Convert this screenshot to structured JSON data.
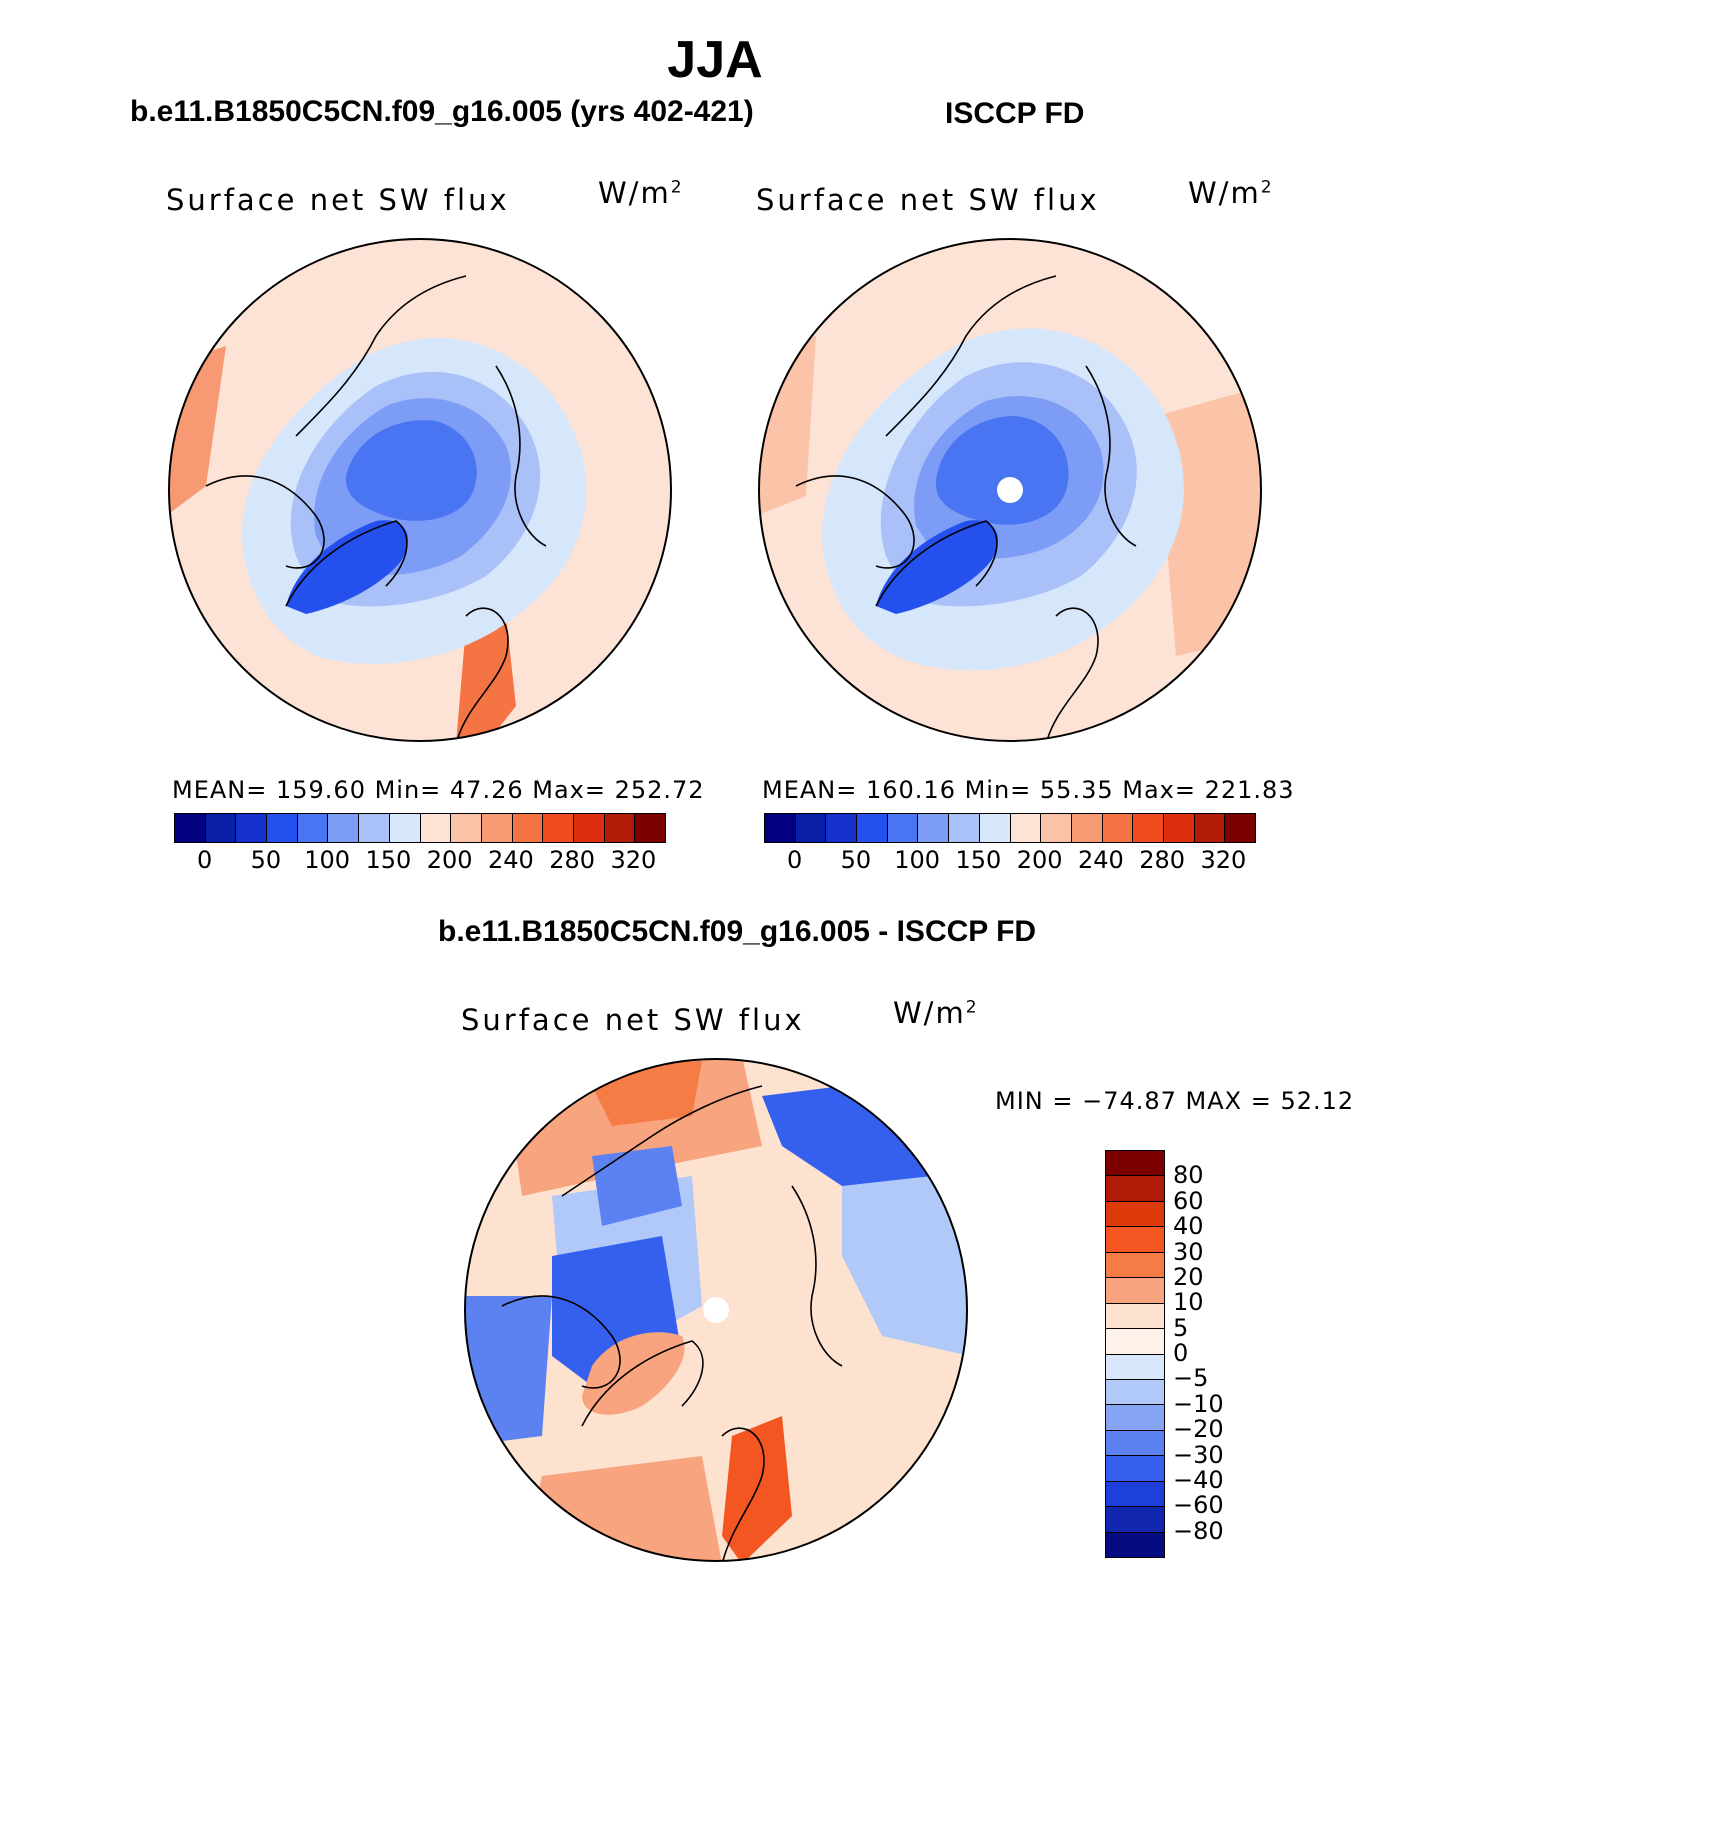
{
  "figure": {
    "title": "JJA",
    "left_header": "b.e11.B1850C5CN.f09_g16.005 (yrs 402-421)",
    "right_header": "ISCCP FD",
    "diff_header": "b.e11.B1850C5CN.f09_g16.005 - ISCCP FD"
  },
  "panels": {
    "model": {
      "title": "Surface net SW flux",
      "units": "W/m",
      "units_sup": "2",
      "stats": "MEAN=  159.60   Min=    47.26    Max=  252.72"
    },
    "obs": {
      "title": "Surface net SW flux",
      "units": "W/m",
      "units_sup": "2",
      "stats": "MEAN=  160.16   Min=    55.35    Max=  221.83"
    },
    "diff": {
      "title": "Surface net SW flux",
      "units": "W/m",
      "units_sup": "2",
      "stats": "MIN  =  −74.87  MAX  =    52.12"
    }
  },
  "chart_data": [
    {
      "type": "heatmap",
      "projection": "north-polar-stereographic",
      "title": "Surface net SW flux",
      "subtitle": "b.e11.B1850C5CN.f09_g16.005 (yrs 402-421)",
      "units": "W/m2",
      "mean": 159.6,
      "min": 47.26,
      "max": 252.72,
      "colorbar_ticks": [
        "0",
        "50",
        "100",
        "150",
        "200",
        "240",
        "280",
        "320"
      ],
      "colorbar_levels": 16
    },
    {
      "type": "heatmap",
      "projection": "north-polar-stereographic",
      "title": "Surface net SW flux",
      "subtitle": "ISCCP FD",
      "units": "W/m2",
      "mean": 160.16,
      "min": 55.35,
      "max": 221.83,
      "colorbar_ticks": [
        "0",
        "50",
        "100",
        "150",
        "200",
        "240",
        "280",
        "320"
      ],
      "colorbar_levels": 16
    },
    {
      "type": "heatmap",
      "projection": "north-polar-stereographic",
      "title": "Surface net SW flux",
      "subtitle": "b.e11.B1850C5CN.f09_g16.005 - ISCCP FD",
      "units": "W/m2",
      "min": -74.87,
      "max": 52.12,
      "colorbar_ticks": [
        "80",
        "60",
        "40",
        "30",
        "20",
        "10",
        "5",
        "0",
        "−5",
        "−10",
        "−20",
        "−30",
        "−40",
        "−60",
        "−80"
      ],
      "colorbar_levels": 16
    }
  ],
  "colors": {
    "seq_palette": [
      "#000080",
      "#0a1fa8",
      "#1431cc",
      "#2450ee",
      "#4a75f2",
      "#7d9cf5",
      "#a9c1f8",
      "#d6e6fb",
      "#fde3d6",
      "#fbc4a9",
      "#f79a73",
      "#f47443",
      "#f04a1f",
      "#dd2f0f",
      "#b01a06",
      "#7c0000"
    ],
    "div_palette": [
      "#7c0000",
      "#b01a06",
      "#dd3a0c",
      "#f45622",
      "#f57c45",
      "#f8a57f",
      "#fde2d0",
      "#d8e7fb",
      "#b0c9f9",
      "#86a6f5",
      "#5c82f2",
      "#3560ee",
      "#1d40da",
      "#1226b0",
      "#060c80"
    ],
    "model_bg": "#fde3d6",
    "model_ring": "#d6e6fb",
    "model_mid": "#7d9cf5",
    "model_core": "#2450ee",
    "model_hot": "#f47443",
    "obs_bg": "#fde3d6",
    "obs_ring": "#d6e6fb",
    "obs_mid": "#7d9cf5",
    "obs_core": "#2450ee",
    "diff_bg": "#fde2d0",
    "diff_warm": "#f8a57f",
    "diff_hot": "#f45622",
    "diff_cold": "#3560ee",
    "diff_cool": "#b0c9f9"
  }
}
